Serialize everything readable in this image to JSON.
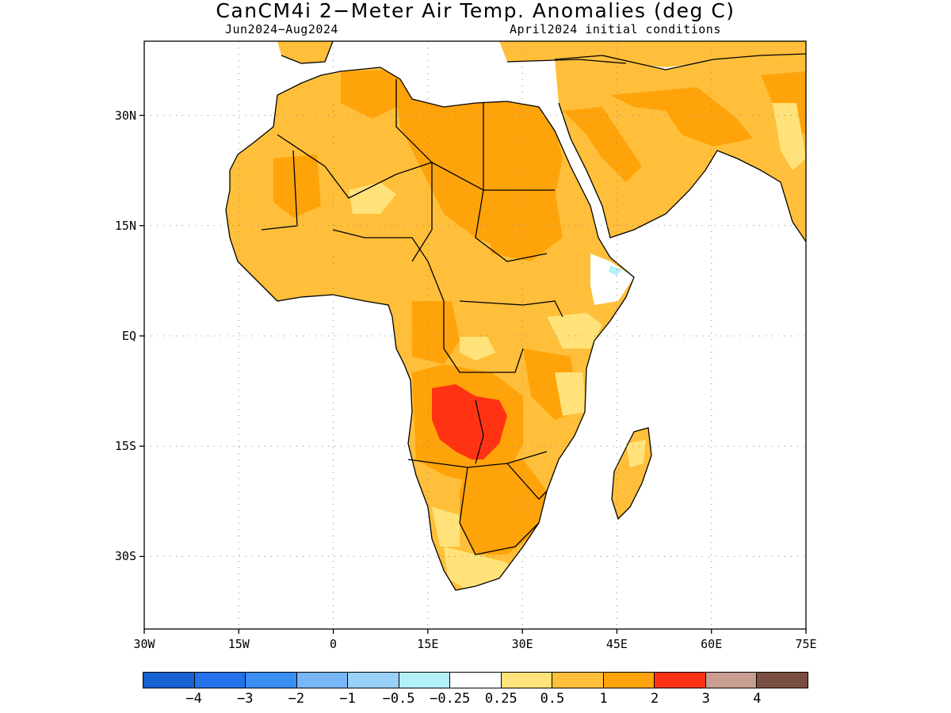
{
  "title": "CanCM4i 2−Meter Air Temp. Anomalies (deg C)",
  "subtitle_left": "Jun2024−Aug2024",
  "subtitle_right": "April2024 initial conditions",
  "y_ticks": [
    {
      "id": "30n",
      "label": "30N",
      "lat": 30
    },
    {
      "id": "15n",
      "label": "15N",
      "lat": 15
    },
    {
      "id": "eq",
      "label": "EQ",
      "lat": 0
    },
    {
      "id": "15s",
      "label": "15S",
      "lat": -15
    },
    {
      "id": "30s",
      "label": "30S",
      "lat": -30
    }
  ],
  "x_ticks": [
    {
      "id": "30w",
      "label": "30W",
      "lon": -30
    },
    {
      "id": "15w",
      "label": "15W",
      "lon": -15
    },
    {
      "id": "0",
      "label": "0",
      "lon": 0
    },
    {
      "id": "15e",
      "label": "15E",
      "lon": 15
    },
    {
      "id": "30e",
      "label": "30E",
      "lon": 30
    },
    {
      "id": "45e",
      "label": "45E",
      "lon": 45
    },
    {
      "id": "60e",
      "label": "60E",
      "lon": 60
    },
    {
      "id": "75e",
      "label": "75E",
      "lon": 75
    }
  ],
  "colorbar": {
    "colors": [
      "#1662d0",
      "#2372e9",
      "#3a8ef2",
      "#78b6f5",
      "#98d0f7",
      "#b4f0f8",
      "#ffffff",
      "#ffe27a",
      "#ffbf3a",
      "#ffa30a",
      "#ff3314",
      "#c99d90",
      "#7a4e40"
    ],
    "labels": [
      "−4",
      "−3",
      "−2",
      "−1",
      "−0.5",
      "−0.25",
      "0.25",
      "0.5",
      "1",
      "2",
      "3",
      "4"
    ]
  },
  "map_colors": {
    "ocean": "#ffffff",
    "coast": "#000000",
    "weak_warm": "#ffe27a",
    "warm": "#ffbf3a",
    "warmer": "#ffa30a",
    "hot": "#ff3314",
    "cool": "#b4f0f8"
  }
}
